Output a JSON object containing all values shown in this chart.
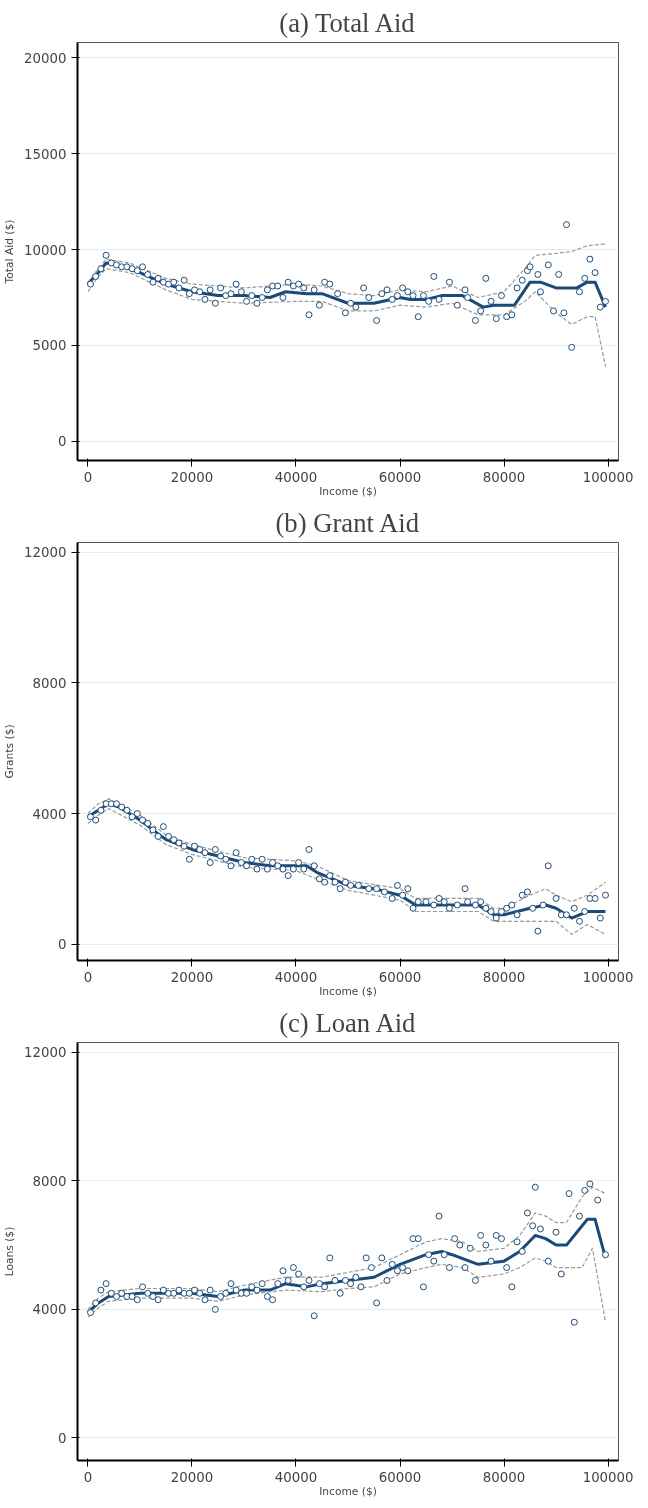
{
  "chart_data": [
    {
      "type": "scatter",
      "title": "(a) Total Aid",
      "xlabel": "Income ($)",
      "ylabel": "Total Aid ($)",
      "xlim": [
        -2000,
        102000
      ],
      "ylim": [
        -1000,
        20800
      ],
      "xticks": [
        0,
        20000,
        40000,
        60000,
        80000,
        100000
      ],
      "yticks": [
        0,
        5000,
        10000,
        15000,
        20000
      ],
      "grid": "y",
      "series": [
        {
          "type": "scatter",
          "marker": "circle",
          "color": "#1f4e79",
          "x": [
            500,
            1500,
            2500,
            3500,
            4500,
            5500,
            6500,
            7500,
            8500,
            9500,
            10500,
            11500,
            12500,
            13500,
            14500,
            15500,
            16500,
            17500,
            18500,
            19500,
            20500,
            21500,
            22500,
            23500,
            24500,
            25500,
            26500,
            27500,
            28500,
            29500,
            30500,
            31500,
            32500,
            33500,
            34500,
            35500,
            36500,
            37500,
            38500,
            39500,
            40500,
            41500,
            42500,
            43500,
            44500,
            45500,
            46500,
            48000,
            49500,
            50500,
            51500,
            53000,
            54000,
            55500,
            56500,
            57500,
            58500,
            59500,
            60500,
            61500,
            62500,
            63500,
            64500,
            65500,
            66500,
            67500,
            69500,
            71000,
            72500,
            73000,
            74500,
            75500,
            76500,
            77500,
            78500,
            79500,
            80500,
            81500,
            82500,
            83500,
            84500,
            85000,
            86500,
            87000,
            88500,
            89500,
            90500,
            91500,
            92000,
            93000,
            94500,
            95500,
            96500,
            97500,
            98500,
            99500
          ],
          "values": [
            8200,
            8600,
            9000,
            9700,
            9300,
            9200,
            9100,
            9100,
            9000,
            8900,
            9100,
            8700,
            8300,
            8500,
            8300,
            8200,
            8300,
            8000,
            8400,
            7700,
            7900,
            7800,
            7400,
            7900,
            7200,
            8000,
            7600,
            7700,
            8200,
            7800,
            7300,
            7600,
            7200,
            7500,
            7900,
            8100,
            8100,
            7500,
            8300,
            8100,
            8200,
            8000,
            6600,
            7900,
            7100,
            8300,
            8200,
            7700,
            6700,
            7200,
            7000,
            8000,
            7500,
            6300,
            7700,
            7900,
            7400,
            7600,
            8000,
            7800,
            7600,
            6500,
            7600,
            7300,
            8600,
            7400,
            8300,
            7100,
            7900,
            7500,
            6300,
            6800,
            8500,
            7300,
            6400,
            7600,
            6500,
            6600,
            8000,
            8400,
            8900,
            9100,
            8700,
            7800,
            9200,
            6800,
            8700,
            6700,
            11300,
            4900,
            7800,
            8500,
            9500,
            8800,
            7000,
            7300
          ]
        },
        {
          "type": "line",
          "line_style": "solid",
          "color": "#1a4a7a",
          "x": [
            0,
            2000,
            3500,
            6000,
            10000,
            15000,
            20000,
            25000,
            30000,
            35000,
            38000,
            42000,
            45000,
            50000,
            55000,
            60000,
            62000,
            65000,
            68000,
            72000,
            76000,
            78000,
            82000,
            85000,
            87000,
            90000,
            94000,
            96000,
            97500,
            99500
          ],
          "values": [
            8200,
            8800,
            9300,
            9200,
            8800,
            8200,
            7800,
            7600,
            7600,
            7500,
            7800,
            7700,
            7700,
            7200,
            7200,
            7500,
            7400,
            7400,
            7600,
            7600,
            7000,
            7100,
            7100,
            8300,
            8300,
            8000,
            8000,
            8300,
            8300,
            7000
          ]
        },
        {
          "type": "line",
          "line_style": "dashed",
          "color": "#9a9a9a",
          "x": [
            0,
            2000,
            3500,
            8000,
            15000,
            20000,
            30000,
            40000,
            45000,
            50000,
            55000,
            60000,
            65000,
            70000,
            75000,
            80000,
            84000,
            86000,
            90000,
            93000,
            96000,
            99500
          ],
          "values": [
            8300,
            9000,
            9500,
            9300,
            8500,
            8200,
            8000,
            8200,
            8100,
            7700,
            7600,
            7900,
            7800,
            8100,
            7500,
            7800,
            9000,
            9700,
            9800,
            9900,
            10200,
            10300
          ]
        },
        {
          "type": "line",
          "line_style": "dashed",
          "color": "#9a9a9a",
          "x": [
            0,
            2000,
            3500,
            8000,
            15000,
            20000,
            30000,
            40000,
            45000,
            50000,
            55000,
            60000,
            65000,
            70000,
            75000,
            80000,
            84000,
            86000,
            90000,
            93000,
            96000,
            97500,
            99500
          ],
          "values": [
            7800,
            8600,
            9000,
            8800,
            7900,
            7400,
            7200,
            7300,
            7300,
            6800,
            6800,
            7100,
            7000,
            7200,
            6600,
            6600,
            7300,
            7800,
            6700,
            6100,
            6500,
            6500,
            3900
          ]
        }
      ]
    },
    {
      "type": "scatter",
      "title": "(b) Grant Aid",
      "xlabel": "Income ($)",
      "ylabel": "Grants ($)",
      "xlim": [
        -2000,
        102000
      ],
      "ylim": [
        -500,
        12300
      ],
      "xticks": [
        0,
        20000,
        40000,
        60000,
        80000,
        100000
      ],
      "yticks": [
        0,
        4000,
        8000,
        12000
      ],
      "grid": "y",
      "series": [
        {
          "type": "scatter",
          "marker": "circle",
          "color": "#1f4e79",
          "x": [
            500,
            1500,
            2500,
            3500,
            4500,
            5500,
            6500,
            7500,
            8500,
            9500,
            10500,
            11500,
            12500,
            13500,
            14500,
            15500,
            16500,
            17500,
            18500,
            19500,
            20500,
            21500,
            22500,
            23500,
            24500,
            25500,
            26500,
            27500,
            28500,
            29500,
            30500,
            31500,
            32500,
            33500,
            34500,
            35500,
            36500,
            37500,
            38500,
            39500,
            40500,
            41500,
            42500,
            43500,
            44500,
            45500,
            46500,
            47500,
            48500,
            49500,
            50500,
            52000,
            54000,
            55500,
            57000,
            58500,
            59500,
            60500,
            61500,
            62500,
            63500,
            65000,
            66500,
            67500,
            68500,
            69500,
            71000,
            72500,
            73000,
            74500,
            75500,
            76500,
            77500,
            78500,
            79500,
            80500,
            81500,
            82500,
            83500,
            84500,
            85500,
            86500,
            87500,
            88500,
            90000,
            91000,
            92000,
            93500,
            94500,
            95500,
            96500,
            97500,
            98500,
            99500
          ],
          "values": [
            3900,
            3800,
            4100,
            4300,
            4300,
            4300,
            4200,
            4100,
            3900,
            4000,
            3800,
            3700,
            3500,
            3300,
            3600,
            3300,
            3200,
            3100,
            3000,
            2600,
            3000,
            2900,
            2800,
            2500,
            2900,
            2700,
            2600,
            2400,
            2800,
            2500,
            2400,
            2600,
            2300,
            2600,
            2300,
            2500,
            2400,
            2300,
            2100,
            2300,
            2500,
            2300,
            2900,
            2400,
            2000,
            1900,
            2100,
            1900,
            1700,
            1900,
            1800,
            1800,
            1700,
            1700,
            1600,
            1400,
            1800,
            1500,
            1700,
            1100,
            1300,
            1300,
            1200,
            1400,
            1300,
            1100,
            1200,
            1700,
            1300,
            1200,
            1300,
            1100,
            1000,
            800,
            1000,
            1100,
            1200,
            900,
            1500,
            1600,
            1100,
            400,
            1200,
            2400,
            1400,
            900,
            900,
            1100,
            700,
            1000,
            1400,
            1400,
            800,
            1500
          ]
        },
        {
          "type": "line",
          "line_style": "solid",
          "color": "#1a4a7a",
          "x": [
            0,
            2000,
            4000,
            6000,
            10000,
            15000,
            20000,
            25000,
            30000,
            35000,
            40000,
            42000,
            44000,
            50000,
            55000,
            60000,
            63000,
            70000,
            75000,
            78000,
            80000,
            85000,
            88000,
            90000,
            93000,
            96000,
            99500
          ],
          "values": [
            3900,
            4100,
            4300,
            4200,
            3800,
            3200,
            2900,
            2700,
            2500,
            2400,
            2400,
            2400,
            2200,
            1800,
            1700,
            1500,
            1200,
            1200,
            1200,
            900,
            900,
            1100,
            1200,
            1100,
            800,
            1000,
            1000
          ]
        },
        {
          "type": "line",
          "line_style": "dashed",
          "color": "#9a9a9a",
          "x": [
            0,
            2000,
            4000,
            10000,
            15000,
            20000,
            30000,
            40000,
            44000,
            50000,
            60000,
            63000,
            70000,
            75000,
            78000,
            80000,
            85000,
            88000,
            90000,
            93000,
            96000,
            99500
          ],
          "values": [
            4000,
            4300,
            4450,
            3950,
            3350,
            3050,
            2650,
            2550,
            2400,
            1950,
            1700,
            1400,
            1400,
            1400,
            1100,
            1100,
            1500,
            1700,
            1500,
            1300,
            1500,
            1900
          ]
        },
        {
          "type": "line",
          "line_style": "dashed",
          "color": "#9a9a9a",
          "x": [
            0,
            2000,
            4000,
            10000,
            15000,
            20000,
            30000,
            40000,
            44000,
            50000,
            60000,
            63000,
            70000,
            75000,
            78000,
            80000,
            85000,
            88000,
            90000,
            93000,
            96000,
            99500
          ],
          "values": [
            3700,
            3950,
            4150,
            3650,
            3050,
            2750,
            2350,
            2250,
            2000,
            1650,
            1350,
            1000,
            1000,
            1000,
            700,
            700,
            700,
            700,
            700,
            300,
            600,
            300
          ]
        }
      ]
    },
    {
      "type": "scatter",
      "title": "(c) Loan Aid",
      "xlabel": "Income ($)",
      "ylabel": "Loans ($)",
      "xlim": [
        -2000,
        102000
      ],
      "ylim": [
        -700,
        12300
      ],
      "xticks": [
        0,
        20000,
        40000,
        60000,
        80000,
        100000
      ],
      "yticks": [
        0,
        4000,
        8000,
        12000
      ],
      "grid": "y",
      "series": [
        {
          "type": "scatter",
          "marker": "circle",
          "color": "#1f4e79",
          "x": [
            500,
            1500,
            2500,
            3500,
            4500,
            5500,
            6500,
            7500,
            8500,
            9500,
            10500,
            11500,
            12500,
            13500,
            14500,
            15500,
            16500,
            17500,
            18500,
            19500,
            20500,
            21500,
            22500,
            23500,
            24500,
            25500,
            26500,
            27500,
            28500,
            29500,
            30500,
            31500,
            32500,
            33500,
            34500,
            35500,
            36500,
            37500,
            38500,
            39500,
            40500,
            41500,
            42500,
            43500,
            44500,
            45500,
            46500,
            47500,
            48500,
            49500,
            50500,
            51500,
            52500,
            53500,
            54500,
            55500,
            56500,
            57500,
            58500,
            59500,
            60500,
            61500,
            62500,
            63500,
            64500,
            65500,
            66500,
            67500,
            68500,
            69500,
            70500,
            71500,
            72500,
            73500,
            74500,
            75500,
            76500,
            77500,
            78500,
            79500,
            80500,
            81500,
            82500,
            83500,
            84500,
            85500,
            86000,
            87000,
            88500,
            90000,
            91000,
            92500,
            93500,
            94500,
            95500,
            96500,
            98000,
            99500
          ],
          "values": [
            3900,
            4200,
            4600,
            4800,
            4500,
            4400,
            4500,
            4400,
            4400,
            4300,
            4700,
            4500,
            4400,
            4300,
            4600,
            4500,
            4500,
            4600,
            4500,
            4500,
            4600,
            4500,
            4300,
            4600,
            4000,
            4400,
            4500,
            4800,
            4600,
            4500,
            4500,
            4700,
            4600,
            4800,
            4400,
            4300,
            4800,
            5200,
            4900,
            5300,
            5100,
            4700,
            4900,
            3800,
            4800,
            4700,
            5600,
            4900,
            4500,
            4900,
            4800,
            5000,
            4700,
            5600,
            5300,
            4200,
            5600,
            4900,
            5400,
            5200,
            5300,
            5200,
            6200,
            6200,
            4700,
            5700,
            5500,
            6900,
            5700,
            5300,
            6200,
            6000,
            5300,
            5900,
            4900,
            6300,
            6000,
            5500,
            6300,
            6200,
            5300,
            4700,
            6100,
            5800,
            7000,
            6600,
            7800,
            6500,
            5500,
            6400,
            5100,
            7600,
            3600,
            6900,
            7700,
            7900,
            7400,
            5700
          ]
        },
        {
          "type": "line",
          "line_style": "solid",
          "color": "#1a4a7a",
          "x": [
            0,
            2000,
            4000,
            10000,
            20000,
            25000,
            30000,
            35000,
            38000,
            42000,
            45000,
            50000,
            55000,
            60000,
            65000,
            68000,
            70000,
            75000,
            80000,
            83000,
            86000,
            88000,
            90000,
            92000,
            94000,
            96000,
            97500,
            99500
          ],
          "values": [
            3900,
            4200,
            4400,
            4500,
            4500,
            4400,
            4600,
            4600,
            4800,
            4700,
            4800,
            4900,
            5000,
            5400,
            5700,
            5800,
            5700,
            5400,
            5500,
            5800,
            6300,
            6200,
            6000,
            6000,
            6400,
            6800,
            6800,
            5600
          ]
        },
        {
          "type": "line",
          "line_style": "dashed",
          "color": "#9a9a9a",
          "x": [
            0,
            2000,
            4000,
            10000,
            20000,
            25000,
            30000,
            38000,
            45000,
            50000,
            55000,
            60000,
            65000,
            68000,
            72000,
            75000,
            80000,
            83000,
            86000,
            88000,
            90000,
            92000,
            95000,
            97000,
            99500
          ],
          "values": [
            4000,
            4350,
            4550,
            4650,
            4650,
            4550,
            4750,
            5000,
            5000,
            5150,
            5300,
            5700,
            6100,
            6200,
            6100,
            5800,
            5900,
            6300,
            7000,
            6900,
            6700,
            6700,
            7500,
            7800,
            7600
          ]
        },
        {
          "type": "line",
          "line_style": "dashed",
          "color": "#9a9a9a",
          "x": [
            0,
            2000,
            4000,
            10000,
            20000,
            25000,
            30000,
            38000,
            45000,
            50000,
            55000,
            60000,
            65000,
            68000,
            72000,
            75000,
            80000,
            83000,
            86000,
            88000,
            90000,
            92000,
            95000,
            97000,
            99500
          ],
          "values": [
            3750,
            4050,
            4250,
            4350,
            4350,
            4250,
            4450,
            4600,
            4550,
            4650,
            4700,
            5100,
            5300,
            5400,
            5300,
            5000,
            5100,
            5300,
            5600,
            5500,
            5300,
            5300,
            5300,
            5900,
            3600
          ]
        }
      ]
    }
  ]
}
